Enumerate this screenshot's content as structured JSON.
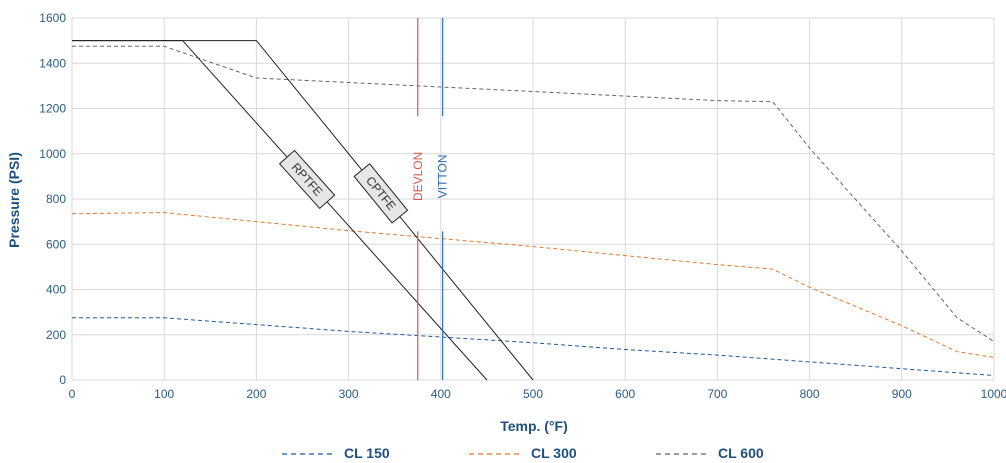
{
  "chart_data": {
    "type": "line",
    "xlabel": "Temp. (°F)",
    "ylabel": "Pressure (PSI)",
    "xlim": [
      0,
      1000
    ],
    "ylim": [
      0,
      1600
    ],
    "x_ticks": [
      0,
      100,
      200,
      300,
      400,
      500,
      600,
      700,
      800,
      900,
      1000
    ],
    "y_ticks": [
      0,
      200,
      400,
      600,
      800,
      1000,
      1200,
      1400,
      1600
    ],
    "grid": true,
    "legend_position": "bottom",
    "series": [
      {
        "name": "CL 150",
        "style": "dashed",
        "color": "#1f5a9e",
        "points": [
          [
            0,
            275
          ],
          [
            100,
            275
          ],
          [
            200,
            245
          ],
          [
            300,
            215
          ],
          [
            400,
            190
          ],
          [
            500,
            165
          ],
          [
            600,
            135
          ],
          [
            700,
            110
          ],
          [
            800,
            80
          ],
          [
            900,
            50
          ],
          [
            1000,
            20
          ]
        ]
      },
      {
        "name": "CL 300",
        "style": "dashed",
        "color": "#e8772a",
        "points": [
          [
            0,
            735
          ],
          [
            100,
            740
          ],
          [
            200,
            700
          ],
          [
            300,
            660
          ],
          [
            400,
            625
          ],
          [
            500,
            590
          ],
          [
            600,
            550
          ],
          [
            700,
            510
          ],
          [
            760,
            490
          ],
          [
            800,
            410
          ],
          [
            900,
            240
          ],
          [
            960,
            125
          ],
          [
            1000,
            100
          ]
        ]
      },
      {
        "name": "CL 600",
        "style": "dashed",
        "color": "#666666",
        "points": [
          [
            0,
            1475
          ],
          [
            100,
            1475
          ],
          [
            200,
            1335
          ],
          [
            300,
            1315
          ],
          [
            400,
            1295
          ],
          [
            500,
            1275
          ],
          [
            600,
            1255
          ],
          [
            700,
            1235
          ],
          [
            760,
            1230
          ],
          [
            800,
            1025
          ],
          [
            900,
            570
          ],
          [
            960,
            275
          ],
          [
            1000,
            170
          ]
        ]
      },
      {
        "name": "RPTFE",
        "style": "solid",
        "color": "#222222",
        "points": [
          [
            0,
            1500
          ],
          [
            120,
            1500
          ],
          [
            450,
            0
          ]
        ]
      },
      {
        "name": "CPTFE",
        "style": "solid",
        "color": "#222222",
        "points": [
          [
            0,
            1500
          ],
          [
            200,
            1500
          ],
          [
            500,
            0
          ]
        ]
      }
    ],
    "vertical_lines": [
      {
        "name": "DEVLON",
        "x": 375,
        "color": "#d9584a"
      },
      {
        "name": "VITTON",
        "x": 402,
        "color": "#2f6fb0"
      }
    ],
    "band_labels": [
      {
        "text": "RPTFE",
        "at_x": 255
      },
      {
        "text": "CPTFE",
        "at_x": 335
      }
    ]
  }
}
